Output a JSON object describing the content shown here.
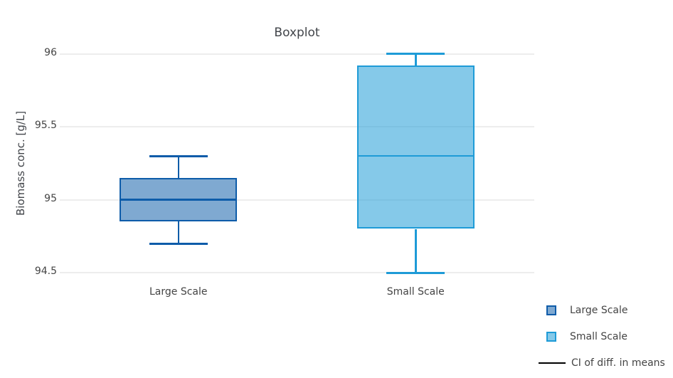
{
  "chart_data": {
    "type": "box",
    "title": "Boxplot",
    "ylabel": "Biomass conc. [g/L]",
    "xlabel": "",
    "yticks": [
      96,
      95.5,
      95,
      94.5
    ],
    "ylim": [
      94.42,
      96.08
    ],
    "grid": true,
    "legend_position": "bottom-right",
    "categories": [
      "Large Scale",
      "Small Scale"
    ],
    "series": [
      {
        "name": "Large Scale",
        "min": 94.7,
        "q1": 94.85,
        "median": 95.0,
        "q3": 95.15,
        "max": 95.3,
        "line_color": "#0E5CA9",
        "fill_color": "rgba(14,92,169,0.53)"
      },
      {
        "name": "Small Scale",
        "min": 94.5,
        "q1": 94.8,
        "median": 95.3,
        "q3": 95.92,
        "max": 96.0,
        "line_color": "#1E9BD7",
        "fill_color": "rgba(30,155,215,0.54)"
      }
    ],
    "legend": [
      {
        "label": "Large Scale",
        "swatch": "box",
        "series_index": 0
      },
      {
        "label": "Small Scale",
        "swatch": "box",
        "series_index": 1
      },
      {
        "label": "CI of diff. in means",
        "swatch": "line",
        "color": "#000000"
      }
    ],
    "colors": {
      "grid": "#EDEDED",
      "text": "#444444",
      "title": "#42454A",
      "background": "#FFFFFF"
    }
  }
}
